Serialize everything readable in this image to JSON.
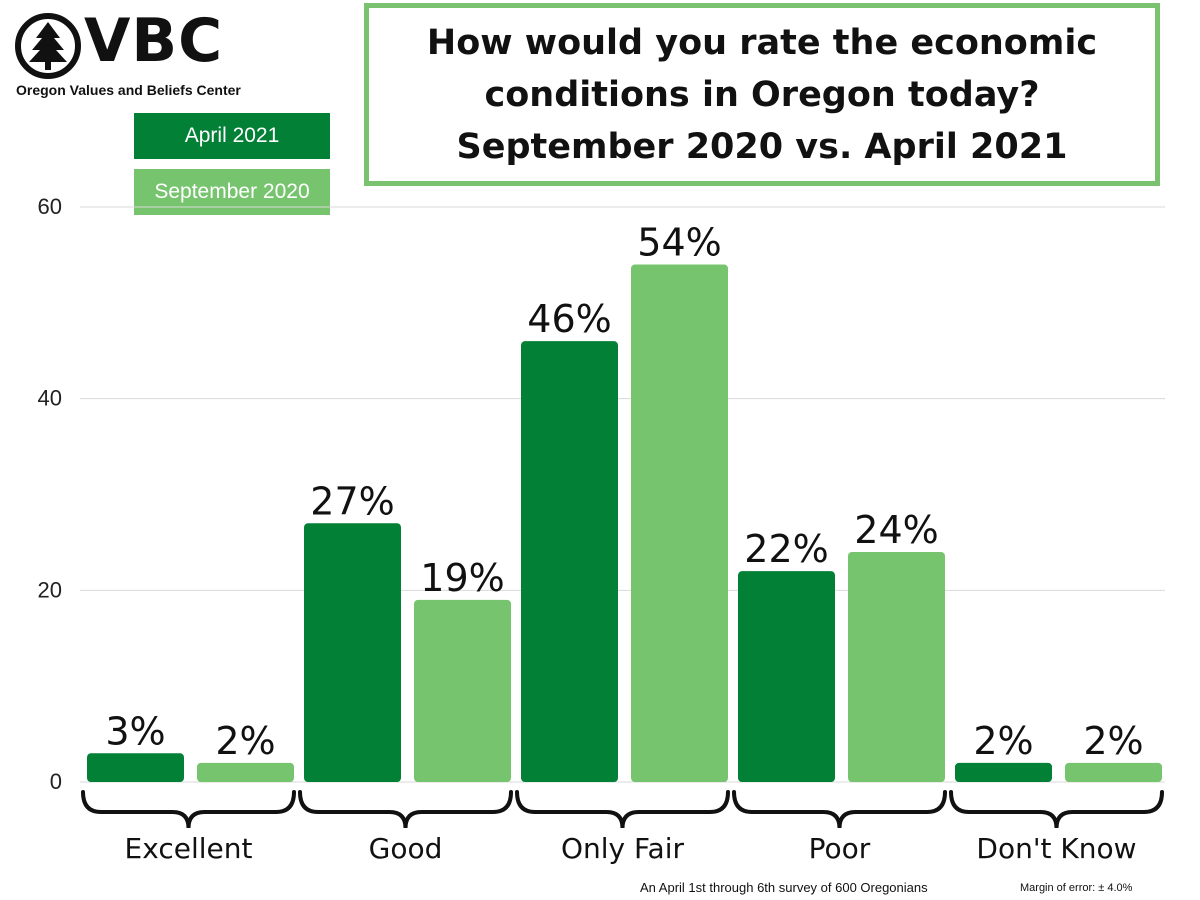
{
  "logo": {
    "word": "VBC",
    "subtitle": "Oregon Values and Beliefs Center"
  },
  "title": "How would you rate the economic\nconditions in Oregon today?\nSeptember 2020 vs. April 2021",
  "colors": {
    "april_2021": "#028035",
    "september_2020": "#77c46f",
    "title_border": "#7ac26f",
    "gridline": "#d9d9d9"
  },
  "chart_data": {
    "type": "bar",
    "title": "How would you rate the economic conditions in Oregon today? September 2020 vs. April 2021",
    "categories": [
      "Excellent",
      "Good",
      "Only Fair",
      "Poor",
      "Don't Know"
    ],
    "series": [
      {
        "name": "April 2021",
        "color": "#028035",
        "values": [
          3,
          27,
          46,
          22,
          2
        ],
        "labels": [
          "3%",
          "27%",
          "46%",
          "22%",
          "2%"
        ]
      },
      {
        "name": "September 2020",
        "color": "#77c46f",
        "values": [
          2,
          19,
          54,
          24,
          2
        ],
        "labels": [
          "2%",
          "19%",
          "54%",
          "24%",
          "2%"
        ]
      }
    ],
    "ylim": [
      0,
      60
    ],
    "yticks": [
      0,
      20,
      40,
      60
    ],
    "ytick_labels": [
      "0",
      "20",
      "40",
      "60"
    ],
    "grid": true,
    "legend": "top-left",
    "xlabel": "",
    "ylabel": ""
  },
  "footnotes": {
    "survey": "An April 1st through 6th survey of 600 Oregonians",
    "margin": "Margin of error: ± 4.0%"
  }
}
